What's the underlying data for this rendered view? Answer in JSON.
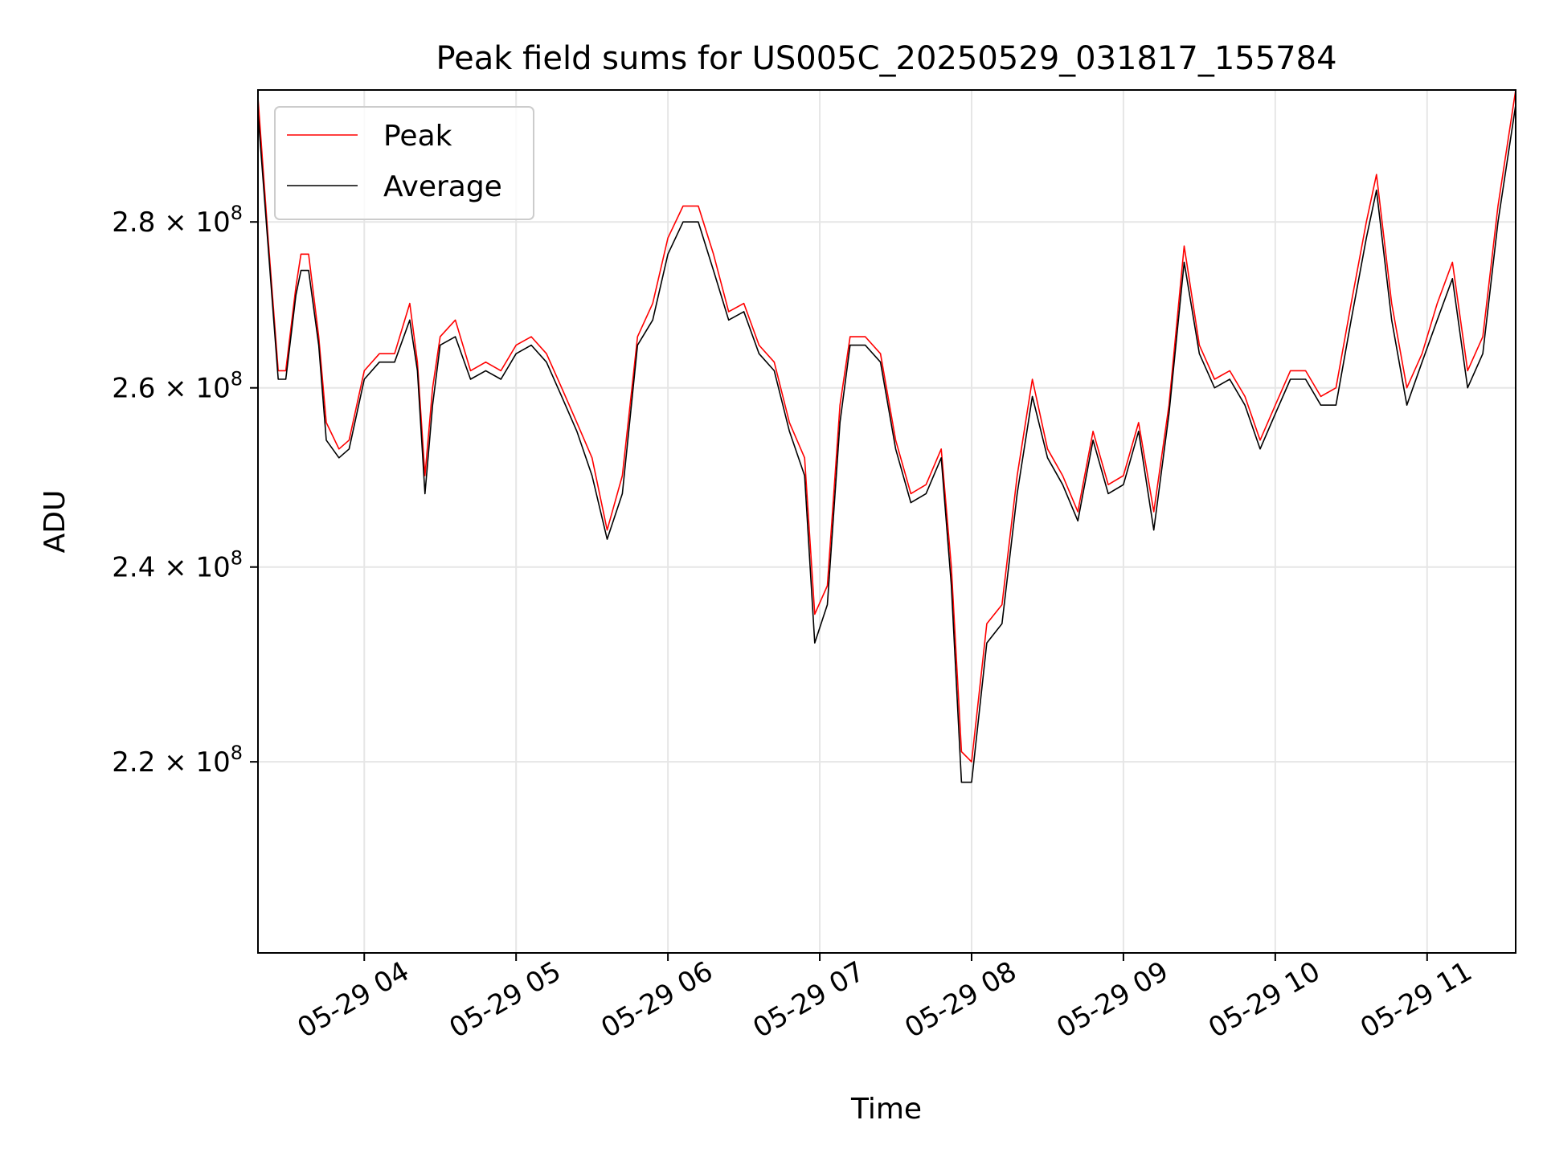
{
  "chart_data": {
    "type": "line",
    "title": "Peak field sums for US005C_20250529_031817_155784",
    "xlabel": "Time",
    "ylabel": "ADU",
    "y_scale": "log",
    "grid": true,
    "legend_position": "upper-left",
    "xlim": [
      "05-29 03:18",
      "05-29 11:35"
    ],
    "ylim": [
      202000000,
      297000000
    ],
    "x_ticks": [
      {
        "t": "05-29 04:00",
        "label": "05-29 04"
      },
      {
        "t": "05-29 05:00",
        "label": "05-29 05"
      },
      {
        "t": "05-29 06:00",
        "label": "05-29 06"
      },
      {
        "t": "05-29 07:00",
        "label": "05-29 07"
      },
      {
        "t": "05-29 08:00",
        "label": "05-29 08"
      },
      {
        "t": "05-29 09:00",
        "label": "05-29 09"
      },
      {
        "t": "05-29 10:00",
        "label": "05-29 10"
      },
      {
        "t": "05-29 11:00",
        "label": "05-29 11"
      }
    ],
    "y_ticks": [
      {
        "value": 220000000,
        "mantissa": "2.2",
        "exponent": "8"
      },
      {
        "value": 240000000,
        "mantissa": "2.4",
        "exponent": "8"
      },
      {
        "value": 260000000,
        "mantissa": "2.6",
        "exponent": "8"
      },
      {
        "value": 280000000,
        "mantissa": "2.8",
        "exponent": "8"
      }
    ],
    "series": [
      {
        "name": "Peak",
        "color": "#ff0000",
        "x": [
          "05-29 03:18",
          "05-29 03:22",
          "05-29 03:26",
          "05-29 03:29",
          "05-29 03:33",
          "05-29 03:35",
          "05-29 03:38",
          "05-29 03:42",
          "05-29 03:45",
          "05-29 03:50",
          "05-29 03:54",
          "05-29 04:00",
          "05-29 04:06",
          "05-29 04:12",
          "05-29 04:18",
          "05-29 04:21",
          "05-29 04:24",
          "05-29 04:27",
          "05-29 04:30",
          "05-29 04:36",
          "05-29 04:42",
          "05-29 04:48",
          "05-29 04:54",
          "05-29 05:00",
          "05-29 05:06",
          "05-29 05:12",
          "05-29 05:18",
          "05-29 05:24",
          "05-29 05:30",
          "05-29 05:36",
          "05-29 05:42",
          "05-29 05:48",
          "05-29 05:54",
          "05-29 06:00",
          "05-29 06:06",
          "05-29 06:12",
          "05-29 06:18",
          "05-29 06:24",
          "05-29 06:30",
          "05-29 06:36",
          "05-29 06:42",
          "05-29 06:48",
          "05-29 06:54",
          "05-29 06:58",
          "05-29 07:03",
          "05-29 07:08",
          "05-29 07:12",
          "05-29 07:18",
          "05-29 07:24",
          "05-29 07:30",
          "05-29 07:36",
          "05-29 07:42",
          "05-29 07:48",
          "05-29 07:52",
          "05-29 07:56",
          "05-29 08:00",
          "05-29 08:06",
          "05-29 08:12",
          "05-29 08:18",
          "05-29 08:24",
          "05-29 08:30",
          "05-29 08:36",
          "05-29 08:42",
          "05-29 08:48",
          "05-29 08:54",
          "05-29 09:00",
          "05-29 09:06",
          "05-29 09:12",
          "05-29 09:18",
          "05-29 09:24",
          "05-29 09:30",
          "05-29 09:36",
          "05-29 09:42",
          "05-29 09:48",
          "05-29 09:54",
          "05-29 10:00",
          "05-29 10:06",
          "05-29 10:12",
          "05-29 10:18",
          "05-29 10:24",
          "05-29 10:30",
          "05-29 10:36",
          "05-29 10:40",
          "05-29 10:46",
          "05-29 10:52",
          "05-29 10:58",
          "05-29 11:04",
          "05-29 11:10",
          "05-29 11:16",
          "05-29 11:22",
          "05-29 11:28",
          "05-29 11:35"
        ],
        "values": [
          296000000,
          278000000,
          262000000,
          262000000,
          272000000,
          276000000,
          276000000,
          266000000,
          256000000,
          253000000,
          254000000,
          262000000,
          264000000,
          264000000,
          270000000,
          263000000,
          250000000,
          260000000,
          266000000,
          268000000,
          262000000,
          263000000,
          262000000,
          265000000,
          266000000,
          264000000,
          260000000,
          256000000,
          252000000,
          244000000,
          250000000,
          266000000,
          270000000,
          278000000,
          282000000,
          282000000,
          276000000,
          269000000,
          270000000,
          265000000,
          263000000,
          256000000,
          252000000,
          235000000,
          238000000,
          258000000,
          266000000,
          266000000,
          264000000,
          254000000,
          248000000,
          249000000,
          253000000,
          240000000,
          221000000,
          220000000,
          234000000,
          236000000,
          250000000,
          261000000,
          253000000,
          250000000,
          246000000,
          255000000,
          249000000,
          250000000,
          256000000,
          246000000,
          258000000,
          277000000,
          265000000,
          261000000,
          262000000,
          259000000,
          254000000,
          258000000,
          262000000,
          262000000,
          259000000,
          260000000,
          270000000,
          280000000,
          286000000,
          270000000,
          260000000,
          264000000,
          270000000,
          275000000,
          262000000,
          266000000,
          282000000,
          297000000
        ]
      },
      {
        "name": "Average",
        "color": "#000000",
        "x": [
          "05-29 03:18",
          "05-29 03:22",
          "05-29 03:26",
          "05-29 03:29",
          "05-29 03:33",
          "05-29 03:35",
          "05-29 03:38",
          "05-29 03:42",
          "05-29 03:45",
          "05-29 03:50",
          "05-29 03:54",
          "05-29 04:00",
          "05-29 04:06",
          "05-29 04:12",
          "05-29 04:18",
          "05-29 04:21",
          "05-29 04:24",
          "05-29 04:27",
          "05-29 04:30",
          "05-29 04:36",
          "05-29 04:42",
          "05-29 04:48",
          "05-29 04:54",
          "05-29 05:00",
          "05-29 05:06",
          "05-29 05:12",
          "05-29 05:18",
          "05-29 05:24",
          "05-29 05:30",
          "05-29 05:36",
          "05-29 05:42",
          "05-29 05:48",
          "05-29 05:54",
          "05-29 06:00",
          "05-29 06:06",
          "05-29 06:12",
          "05-29 06:18",
          "05-29 06:24",
          "05-29 06:30",
          "05-29 06:36",
          "05-29 06:42",
          "05-29 06:48",
          "05-29 06:54",
          "05-29 06:58",
          "05-29 07:03",
          "05-29 07:08",
          "05-29 07:12",
          "05-29 07:18",
          "05-29 07:24",
          "05-29 07:30",
          "05-29 07:36",
          "05-29 07:42",
          "05-29 07:48",
          "05-29 07:52",
          "05-29 07:56",
          "05-29 08:00",
          "05-29 08:06",
          "05-29 08:12",
          "05-29 08:18",
          "05-29 08:24",
          "05-29 08:30",
          "05-29 08:36",
          "05-29 08:42",
          "05-29 08:48",
          "05-29 08:54",
          "05-29 09:00",
          "05-29 09:06",
          "05-29 09:12",
          "05-29 09:18",
          "05-29 09:24",
          "05-29 09:30",
          "05-29 09:36",
          "05-29 09:42",
          "05-29 09:48",
          "05-29 09:54",
          "05-29 10:00",
          "05-29 10:06",
          "05-29 10:12",
          "05-29 10:18",
          "05-29 10:24",
          "05-29 10:30",
          "05-29 10:36",
          "05-29 10:40",
          "05-29 10:46",
          "05-29 10:52",
          "05-29 10:58",
          "05-29 11:04",
          "05-29 11:10",
          "05-29 11:16",
          "05-29 11:22",
          "05-29 11:28",
          "05-29 11:35"
        ],
        "values": [
          294000000,
          277000000,
          261000000,
          261000000,
          271000000,
          274000000,
          274000000,
          265000000,
          254000000,
          252000000,
          253000000,
          261000000,
          263000000,
          263000000,
          268000000,
          262000000,
          248000000,
          258000000,
          265000000,
          266000000,
          261000000,
          262000000,
          261000000,
          264000000,
          265000000,
          263000000,
          259000000,
          255000000,
          250000000,
          243000000,
          248000000,
          265000000,
          268000000,
          276000000,
          280000000,
          280000000,
          274000000,
          268000000,
          269000000,
          264000000,
          262000000,
          255000000,
          250000000,
          232000000,
          236000000,
          256000000,
          265000000,
          265000000,
          263000000,
          253000000,
          247000000,
          248000000,
          252000000,
          238000000,
          218000000,
          218000000,
          232000000,
          234000000,
          248000000,
          259000000,
          252000000,
          249000000,
          245000000,
          254000000,
          248000000,
          249000000,
          255000000,
          244000000,
          257000000,
          275000000,
          264000000,
          260000000,
          261000000,
          258000000,
          253000000,
          257000000,
          261000000,
          261000000,
          258000000,
          258000000,
          268000000,
          278000000,
          284000000,
          268000000,
          258000000,
          263000000,
          268000000,
          273000000,
          260000000,
          264000000,
          280000000,
          295000000
        ]
      }
    ]
  }
}
